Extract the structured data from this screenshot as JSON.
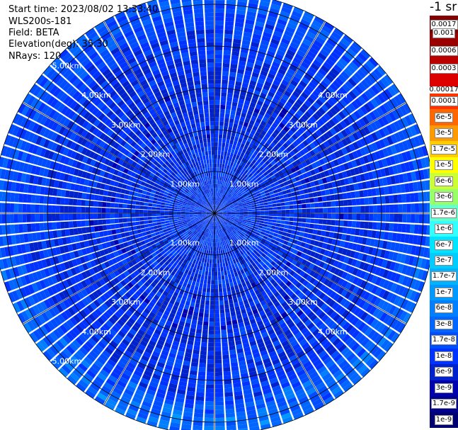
{
  "header": {
    "start_time": "Start time: 2023/08/02 13:33:40",
    "instrument": "WLS200s-181",
    "field": "Field: BETA",
    "elevation": "Elevation(deg): 35.30",
    "nrays": "NRays: 120"
  },
  "colorbar": {
    "title": "-1 sr",
    "upper_labels": [
      "0.0017",
      "0.001",
      "0.0006",
      "0.0003",
      "0.00017"
    ],
    "upper_colors": [
      "#7f0000",
      "#9a0000",
      "#bb0000",
      "#dd0000"
    ],
    "lower_labels": [
      "0.0001",
      "6e-5",
      "3e-5",
      "1.7e-5",
      "1e-5",
      "6e-6",
      "3e-6",
      "1.7e-6",
      "1e-6",
      "6e-7",
      "3e-7",
      "1.7e-7",
      "1e-7",
      "6e-8",
      "3e-8",
      "1.7e-8",
      "1e-8",
      "6e-9",
      "3e-9",
      "1.7e-9",
      "1e-9"
    ],
    "lower_colors": [
      "#ff3300",
      "#ff6600",
      "#ff9900",
      "#ffcc00",
      "#ffff00",
      "#ccff33",
      "#99ff66",
      "#66ffcc",
      "#33ffff",
      "#00e5ff",
      "#00ccff",
      "#00b2ff",
      "#0099ff",
      "#0080ff",
      "#0066ff",
      "#004dff",
      "#0033ff",
      "#0022cc",
      "#0000b0",
      "#000090",
      "#000070"
    ]
  },
  "chart_data": {
    "type": "polar_ppi",
    "field": "BETA",
    "units": "-1 sr",
    "n_rays": 120,
    "elevation_deg": 35.3,
    "range_rings_km": [
      1,
      2,
      3,
      4,
      5
    ],
    "ring_labels": [
      "1.00km",
      "2.00km",
      "3.00km",
      "4.00km",
      "5.00km"
    ],
    "max_range_km": 5.3,
    "spoke_angles_deg": [
      0,
      30,
      60,
      90,
      120,
      150,
      180,
      210,
      240,
      270,
      300,
      330
    ],
    "color_scale": "log",
    "value_range": [
      1e-09,
      0.0017
    ],
    "radial_profile": [
      {
        "range_km": 0.5,
        "beta": 1.3e-08
      },
      {
        "range_km": 1.5,
        "beta": 1e-08
      },
      {
        "range_km": 2.5,
        "beta": 9e-09
      },
      {
        "range_km": 3.5,
        "beta": 1e-08
      },
      {
        "range_km": 4.5,
        "beta": 1.4e-08
      },
      {
        "range_km": 5.1,
        "beta": 2.4e-08
      }
    ]
  }
}
